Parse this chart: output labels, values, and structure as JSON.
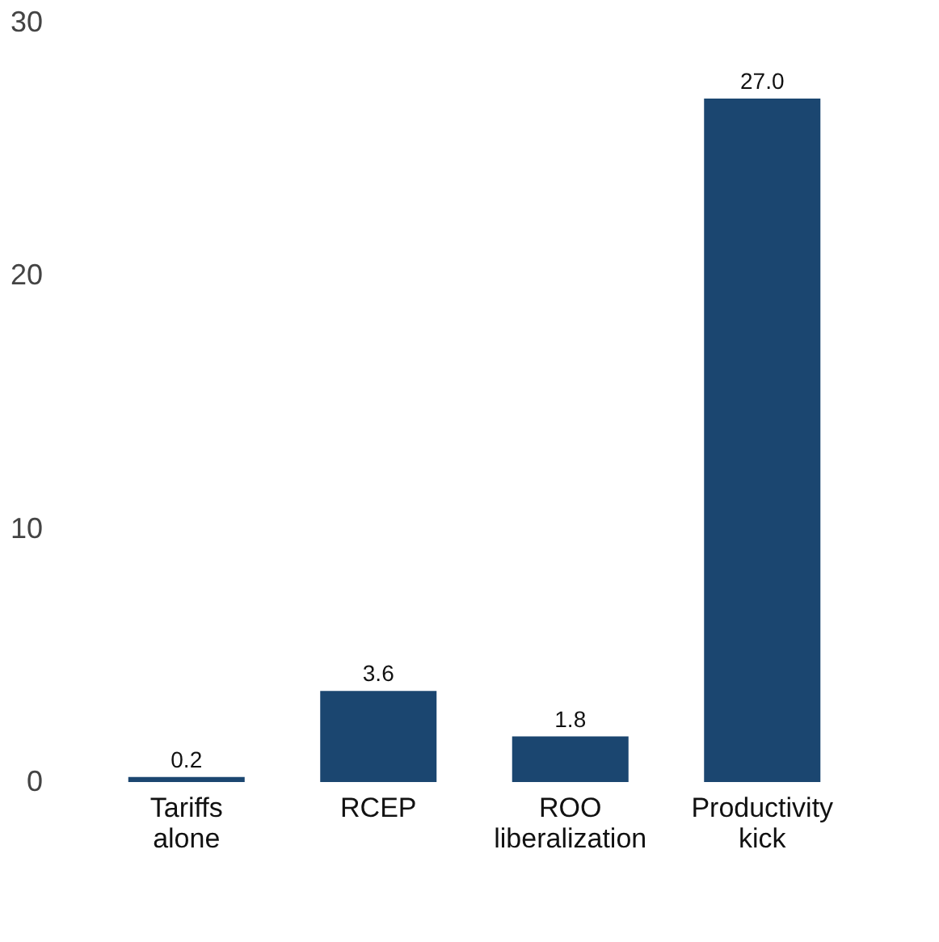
{
  "chart_data": {
    "type": "bar",
    "categories": [
      "Tariffs alone",
      "RCEP",
      "ROO liberalization",
      "Productivity kick"
    ],
    "values": [
      0.2,
      3.6,
      1.8,
      27.0
    ],
    "color": "#1b4670",
    "ylim": [
      0,
      30
    ],
    "yticks": [
      0,
      10,
      20,
      30
    ],
    "grid": false,
    "value_labels": [
      "0.2",
      "3.6",
      "1.8",
      "27.0"
    ]
  }
}
